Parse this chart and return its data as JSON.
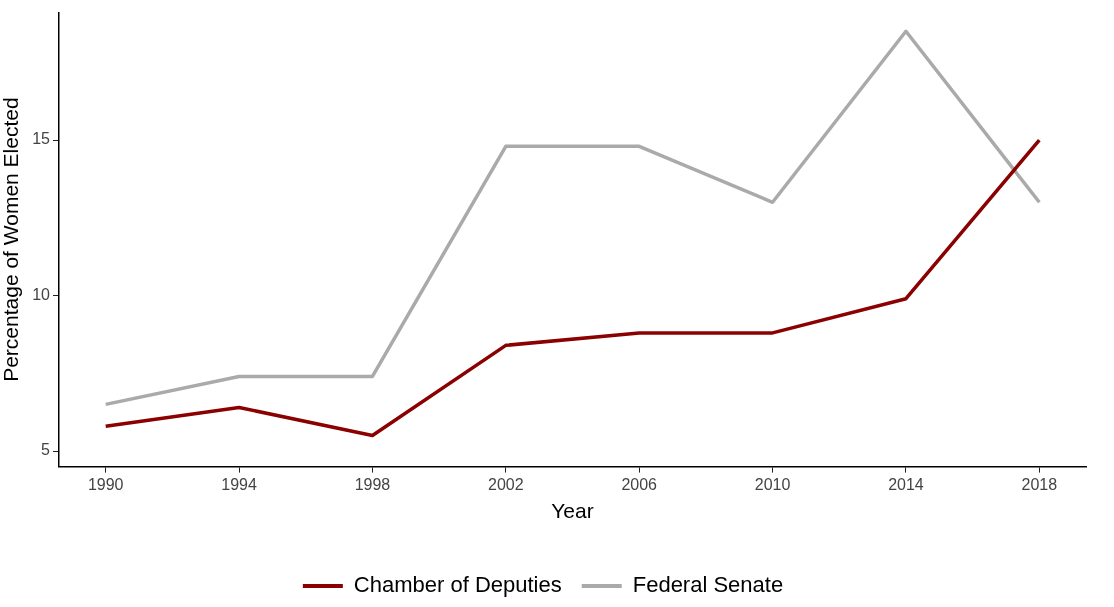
{
  "chart_data": {
    "type": "line",
    "xlabel": "Year",
    "ylabel": "Percentage of Women Elected",
    "x": [
      1990,
      1994,
      1998,
      2002,
      2006,
      2010,
      2014,
      2018
    ],
    "series": [
      {
        "name": "Chamber of Deputies",
        "color": "#8b0000",
        "values": [
          5.8,
          6.4,
          5.5,
          8.4,
          8.8,
          8.8,
          9.9,
          15.0
        ]
      },
      {
        "name": "Federal Senate",
        "color": "#aaaaaa",
        "values": [
          6.5,
          7.4,
          7.4,
          14.8,
          14.8,
          13.0,
          18.5,
          13.0
        ]
      }
    ],
    "xlim": [
      1988.6,
      2019.4
    ],
    "xticks": [
      1990,
      1994,
      1998,
      2002,
      2006,
      2010,
      2014,
      2018
    ],
    "ylim": [
      4.5,
      19.1
    ],
    "yticks": [
      5,
      10,
      15
    ],
    "grid": false,
    "legend": "bottom",
    "marker": "none",
    "line_style": "solid"
  }
}
